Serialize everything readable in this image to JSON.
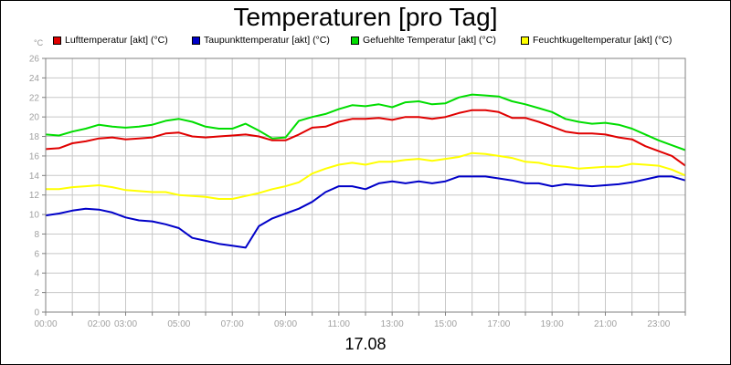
{
  "chart_data": {
    "type": "line",
    "title": "Temperaturen [pro Tag]",
    "xlabel": "17.08",
    "ylabel": "°C",
    "ylim": [
      0,
      26
    ],
    "yticks": [
      0,
      2,
      4,
      6,
      8,
      10,
      12,
      14,
      16,
      18,
      20,
      22,
      24,
      26
    ],
    "xlim": [
      0,
      24
    ],
    "xticks": [
      {
        "t": 0,
        "label": "00:00"
      },
      {
        "t": 2,
        "label": "02:00"
      },
      {
        "t": 3,
        "label": "03:00"
      },
      {
        "t": 5,
        "label": "05:00"
      },
      {
        "t": 7,
        "label": "07:00"
      },
      {
        "t": 9,
        "label": "09:00"
      },
      {
        "t": 11,
        "label": "11:00"
      },
      {
        "t": 13,
        "label": "13:00"
      },
      {
        "t": 15,
        "label": "15:00"
      },
      {
        "t": 17,
        "label": "17:00"
      },
      {
        "t": 19,
        "label": "19:00"
      },
      {
        "t": 21,
        "label": "21:00"
      },
      {
        "t": 23,
        "label": "23:00"
      }
    ],
    "grid": true,
    "legend_position": "top",
    "x": [
      0,
      0.5,
      1,
      1.5,
      2,
      2.5,
      3,
      3.5,
      4,
      4.5,
      5,
      5.5,
      6,
      6.5,
      7,
      7.5,
      8,
      8.5,
      9,
      9.5,
      10,
      10.5,
      11,
      11.5,
      12,
      12.5,
      13,
      13.5,
      14,
      14.5,
      15,
      15.5,
      16,
      16.5,
      17,
      17.5,
      18,
      18.5,
      19,
      19.5,
      20,
      20.5,
      21,
      21.5,
      22,
      22.5,
      23,
      23.5,
      24
    ],
    "series": [
      {
        "name": "Lufttemperatur [akt] (°C)",
        "color": "#e00000",
        "values": [
          16.7,
          16.8,
          17.3,
          17.5,
          17.8,
          17.9,
          17.7,
          17.8,
          17.9,
          18.3,
          18.4,
          18.0,
          17.9,
          18.0,
          18.1,
          18.2,
          18.0,
          17.6,
          17.6,
          18.2,
          18.9,
          19.0,
          19.5,
          19.8,
          19.8,
          19.9,
          19.7,
          20.0,
          20.0,
          19.8,
          20.0,
          20.4,
          20.7,
          20.7,
          20.5,
          19.9,
          19.9,
          19.5,
          19.0,
          18.5,
          18.3,
          18.3,
          18.2,
          17.9,
          17.7,
          17.0,
          16.5,
          16.0,
          15.0
        ]
      },
      {
        "name": "Taupunkttemperatur [akt] (°C)",
        "color": "#0000c8",
        "values": [
          9.9,
          10.1,
          10.4,
          10.6,
          10.5,
          10.2,
          9.7,
          9.4,
          9.3,
          9.0,
          8.6,
          7.6,
          7.3,
          7.0,
          6.8,
          6.6,
          8.8,
          9.6,
          10.1,
          10.6,
          11.3,
          12.3,
          12.9,
          12.9,
          12.6,
          13.2,
          13.4,
          13.2,
          13.4,
          13.2,
          13.4,
          13.9,
          13.9,
          13.9,
          13.7,
          13.5,
          13.2,
          13.2,
          12.9,
          13.1,
          13.0,
          12.9,
          13.0,
          13.1,
          13.3,
          13.6,
          13.9,
          13.9,
          13.5
        ]
      },
      {
        "name": "Gefuehlte Temperatur [akt] (°C)",
        "color": "#00dd00",
        "values": [
          18.2,
          18.1,
          18.5,
          18.8,
          19.2,
          19.0,
          18.9,
          19.0,
          19.2,
          19.6,
          19.8,
          19.5,
          19.0,
          18.8,
          18.8,
          19.3,
          18.6,
          17.8,
          17.9,
          19.6,
          20.0,
          20.3,
          20.8,
          21.2,
          21.1,
          21.3,
          21.0,
          21.5,
          21.6,
          21.3,
          21.4,
          22.0,
          22.3,
          22.2,
          22.1,
          21.6,
          21.3,
          20.9,
          20.5,
          19.8,
          19.5,
          19.3,
          19.4,
          19.2,
          18.8,
          18.2,
          17.6,
          17.1,
          16.6
        ]
      },
      {
        "name": "Feuchtkugeltemperatur [akt] (°C)",
        "color": "#ffff00",
        "values": [
          12.6,
          12.6,
          12.8,
          12.9,
          13.0,
          12.8,
          12.5,
          12.4,
          12.3,
          12.3,
          12.0,
          11.9,
          11.8,
          11.6,
          11.6,
          11.9,
          12.2,
          12.6,
          12.9,
          13.3,
          14.2,
          14.7,
          15.1,
          15.3,
          15.1,
          15.4,
          15.4,
          15.6,
          15.7,
          15.5,
          15.7,
          15.9,
          16.3,
          16.2,
          16.0,
          15.8,
          15.4,
          15.3,
          15.0,
          14.9,
          14.7,
          14.8,
          14.9,
          14.9,
          15.2,
          15.1,
          15.0,
          14.6,
          14.0
        ]
      }
    ]
  }
}
